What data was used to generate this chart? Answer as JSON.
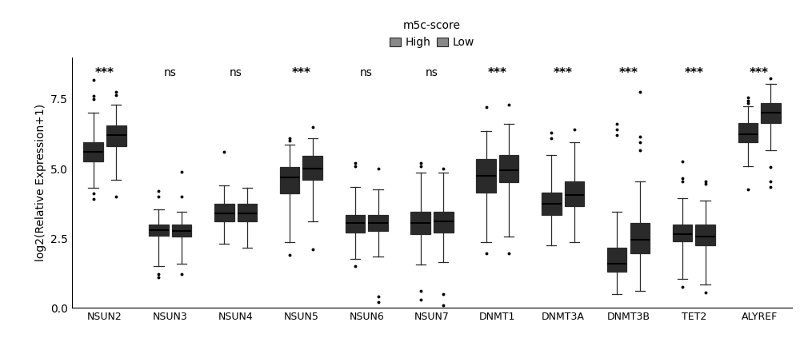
{
  "genes": [
    "NSUN2",
    "NSUN3",
    "NSUN4",
    "NSUN5",
    "NSUN6",
    "NSUN7",
    "DNMT1",
    "DNMT3A",
    "DNMT3B",
    "TET2",
    "ALYREF"
  ],
  "significance": [
    "***",
    "ns",
    "ns",
    "***",
    "ns",
    "ns",
    "***",
    "***",
    "***",
    "***",
    "***"
  ],
  "ylabel": "log2(Relative Expression+1)",
  "ylim": [
    0.0,
    9.0
  ],
  "yticks": [
    0.0,
    2.5,
    5.0,
    7.5
  ],
  "legend_title": "m5c-score",
  "legend_labels": [
    "High",
    "Low"
  ],
  "box_color": "#898989",
  "edge_color": "#2a2a2a",
  "box_data": {
    "NSUN2": {
      "High": {
        "q1": 5.25,
        "median": 5.6,
        "q3": 5.95,
        "whislo": 4.3,
        "whishi": 7.0,
        "fliers": [
          4.1,
          3.9,
          7.5,
          7.6,
          8.2
        ]
      },
      "Low": {
        "q1": 5.8,
        "median": 6.2,
        "q3": 6.55,
        "whislo": 4.6,
        "whishi": 7.3,
        "fliers": [
          4.0,
          7.65,
          7.75
        ]
      }
    },
    "NSUN3": {
      "High": {
        "q1": 2.6,
        "median": 2.8,
        "q3": 3.0,
        "whislo": 1.5,
        "whishi": 3.55,
        "fliers": [
          1.2,
          1.1,
          4.0,
          4.2
        ]
      },
      "Low": {
        "q1": 2.55,
        "median": 2.75,
        "q3": 3.0,
        "whislo": 1.6,
        "whishi": 3.45,
        "fliers": [
          1.2,
          4.0,
          4.9
        ]
      }
    },
    "NSUN4": {
      "High": {
        "q1": 3.1,
        "median": 3.4,
        "q3": 3.75,
        "whislo": 2.3,
        "whishi": 4.4,
        "fliers": [
          5.6
        ]
      },
      "Low": {
        "q1": 3.1,
        "median": 3.4,
        "q3": 3.75,
        "whislo": 2.15,
        "whishi": 4.3,
        "fliers": []
      }
    },
    "NSUN5": {
      "High": {
        "q1": 4.1,
        "median": 4.7,
        "q3": 5.05,
        "whislo": 2.35,
        "whishi": 5.85,
        "fliers": [
          1.9,
          6.0,
          6.1
        ]
      },
      "Low": {
        "q1": 4.6,
        "median": 5.0,
        "q3": 5.45,
        "whislo": 3.1,
        "whishi": 6.1,
        "fliers": [
          2.1,
          6.5
        ]
      }
    },
    "NSUN6": {
      "High": {
        "q1": 2.7,
        "median": 3.05,
        "q3": 3.35,
        "whislo": 1.75,
        "whishi": 4.35,
        "fliers": [
          1.5,
          5.1,
          5.2
        ]
      },
      "Low": {
        "q1": 2.75,
        "median": 3.05,
        "q3": 3.35,
        "whislo": 1.85,
        "whishi": 4.25,
        "fliers": [
          0.4,
          0.2,
          5.0
        ]
      }
    },
    "NSUN7": {
      "High": {
        "q1": 2.65,
        "median": 3.05,
        "q3": 3.45,
        "whislo": 1.55,
        "whishi": 4.85,
        "fliers": [
          0.6,
          0.3,
          5.1,
          5.2
        ]
      },
      "Low": {
        "q1": 2.7,
        "median": 3.1,
        "q3": 3.45,
        "whislo": 1.65,
        "whishi": 4.85,
        "fliers": [
          0.5,
          0.1,
          5.0
        ]
      }
    },
    "DNMT1": {
      "High": {
        "q1": 4.15,
        "median": 4.75,
        "q3": 5.35,
        "whislo": 2.35,
        "whishi": 6.35,
        "fliers": [
          1.95,
          7.2
        ]
      },
      "Low": {
        "q1": 4.5,
        "median": 4.95,
        "q3": 5.5,
        "whislo": 2.55,
        "whishi": 6.6,
        "fliers": [
          1.95,
          7.3
        ]
      }
    },
    "DNMT3A": {
      "High": {
        "q1": 3.35,
        "median": 3.75,
        "q3": 4.15,
        "whislo": 2.25,
        "whishi": 5.5,
        "fliers": [
          6.1,
          6.3
        ]
      },
      "Low": {
        "q1": 3.65,
        "median": 4.05,
        "q3": 4.55,
        "whislo": 2.35,
        "whishi": 5.95,
        "fliers": [
          6.4
        ]
      }
    },
    "DNMT3B": {
      "High": {
        "q1": 1.3,
        "median": 1.6,
        "q3": 2.15,
        "whislo": 0.5,
        "whishi": 3.45,
        "fliers": [
          6.2,
          6.4,
          6.6
        ]
      },
      "Low": {
        "q1": 1.95,
        "median": 2.45,
        "q3": 3.05,
        "whislo": 0.6,
        "whishi": 4.55,
        "fliers": [
          5.65,
          5.95,
          6.15,
          7.75
        ]
      }
    },
    "TET2": {
      "High": {
        "q1": 2.4,
        "median": 2.65,
        "q3": 3.0,
        "whislo": 1.05,
        "whishi": 3.95,
        "fliers": [
          0.75,
          4.55,
          4.65,
          5.25
        ]
      },
      "Low": {
        "q1": 2.25,
        "median": 2.55,
        "q3": 3.0,
        "whislo": 0.85,
        "whishi": 3.85,
        "fliers": [
          0.55,
          4.45,
          4.55
        ]
      }
    },
    "ALYREF": {
      "High": {
        "q1": 5.95,
        "median": 6.25,
        "q3": 6.65,
        "whislo": 5.1,
        "whishi": 7.25,
        "fliers": [
          4.25,
          7.35,
          7.45,
          7.55
        ]
      },
      "Low": {
        "q1": 6.65,
        "median": 7.0,
        "q3": 7.35,
        "whislo": 5.65,
        "whishi": 8.05,
        "fliers": [
          4.35,
          4.55,
          5.05,
          8.25
        ]
      }
    }
  }
}
